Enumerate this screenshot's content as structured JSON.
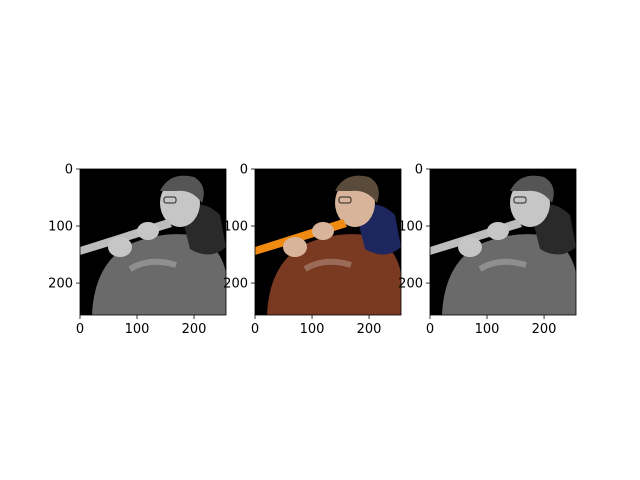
{
  "panels": [
    {
      "id": "grayscale-left",
      "variant": "gray",
      "xticks": [
        "0",
        "100",
        "200"
      ],
      "yticks": [
        "0",
        "100",
        "200"
      ]
    },
    {
      "id": "color-middle",
      "variant": "color",
      "xticks": [
        "0",
        "100",
        "200"
      ],
      "yticks": [
        "0",
        "100",
        "200"
      ]
    },
    {
      "id": "grayscale-right",
      "variant": "gray",
      "xticks": [
        "0",
        "100",
        "200"
      ],
      "yticks": [
        "0",
        "100",
        "200"
      ]
    }
  ],
  "axis_range": {
    "x": [
      0,
      256
    ],
    "y": [
      0,
      256
    ]
  },
  "tick_values": [
    0,
    100,
    200
  ],
  "colors": {
    "background": "#000000",
    "coat_color": "#7a3a22",
    "hood_color": "#1e2660",
    "flute_color": "#f08a10",
    "skin_color": "#d8b49a",
    "hair_color": "#5a4a3a",
    "coat_gray": "#6a6a6a",
    "hood_gray": "#2a2a2a",
    "flute_gray": "#bdbdbd",
    "skin_gray": "#c6c6c6",
    "hair_gray": "#555555"
  }
}
